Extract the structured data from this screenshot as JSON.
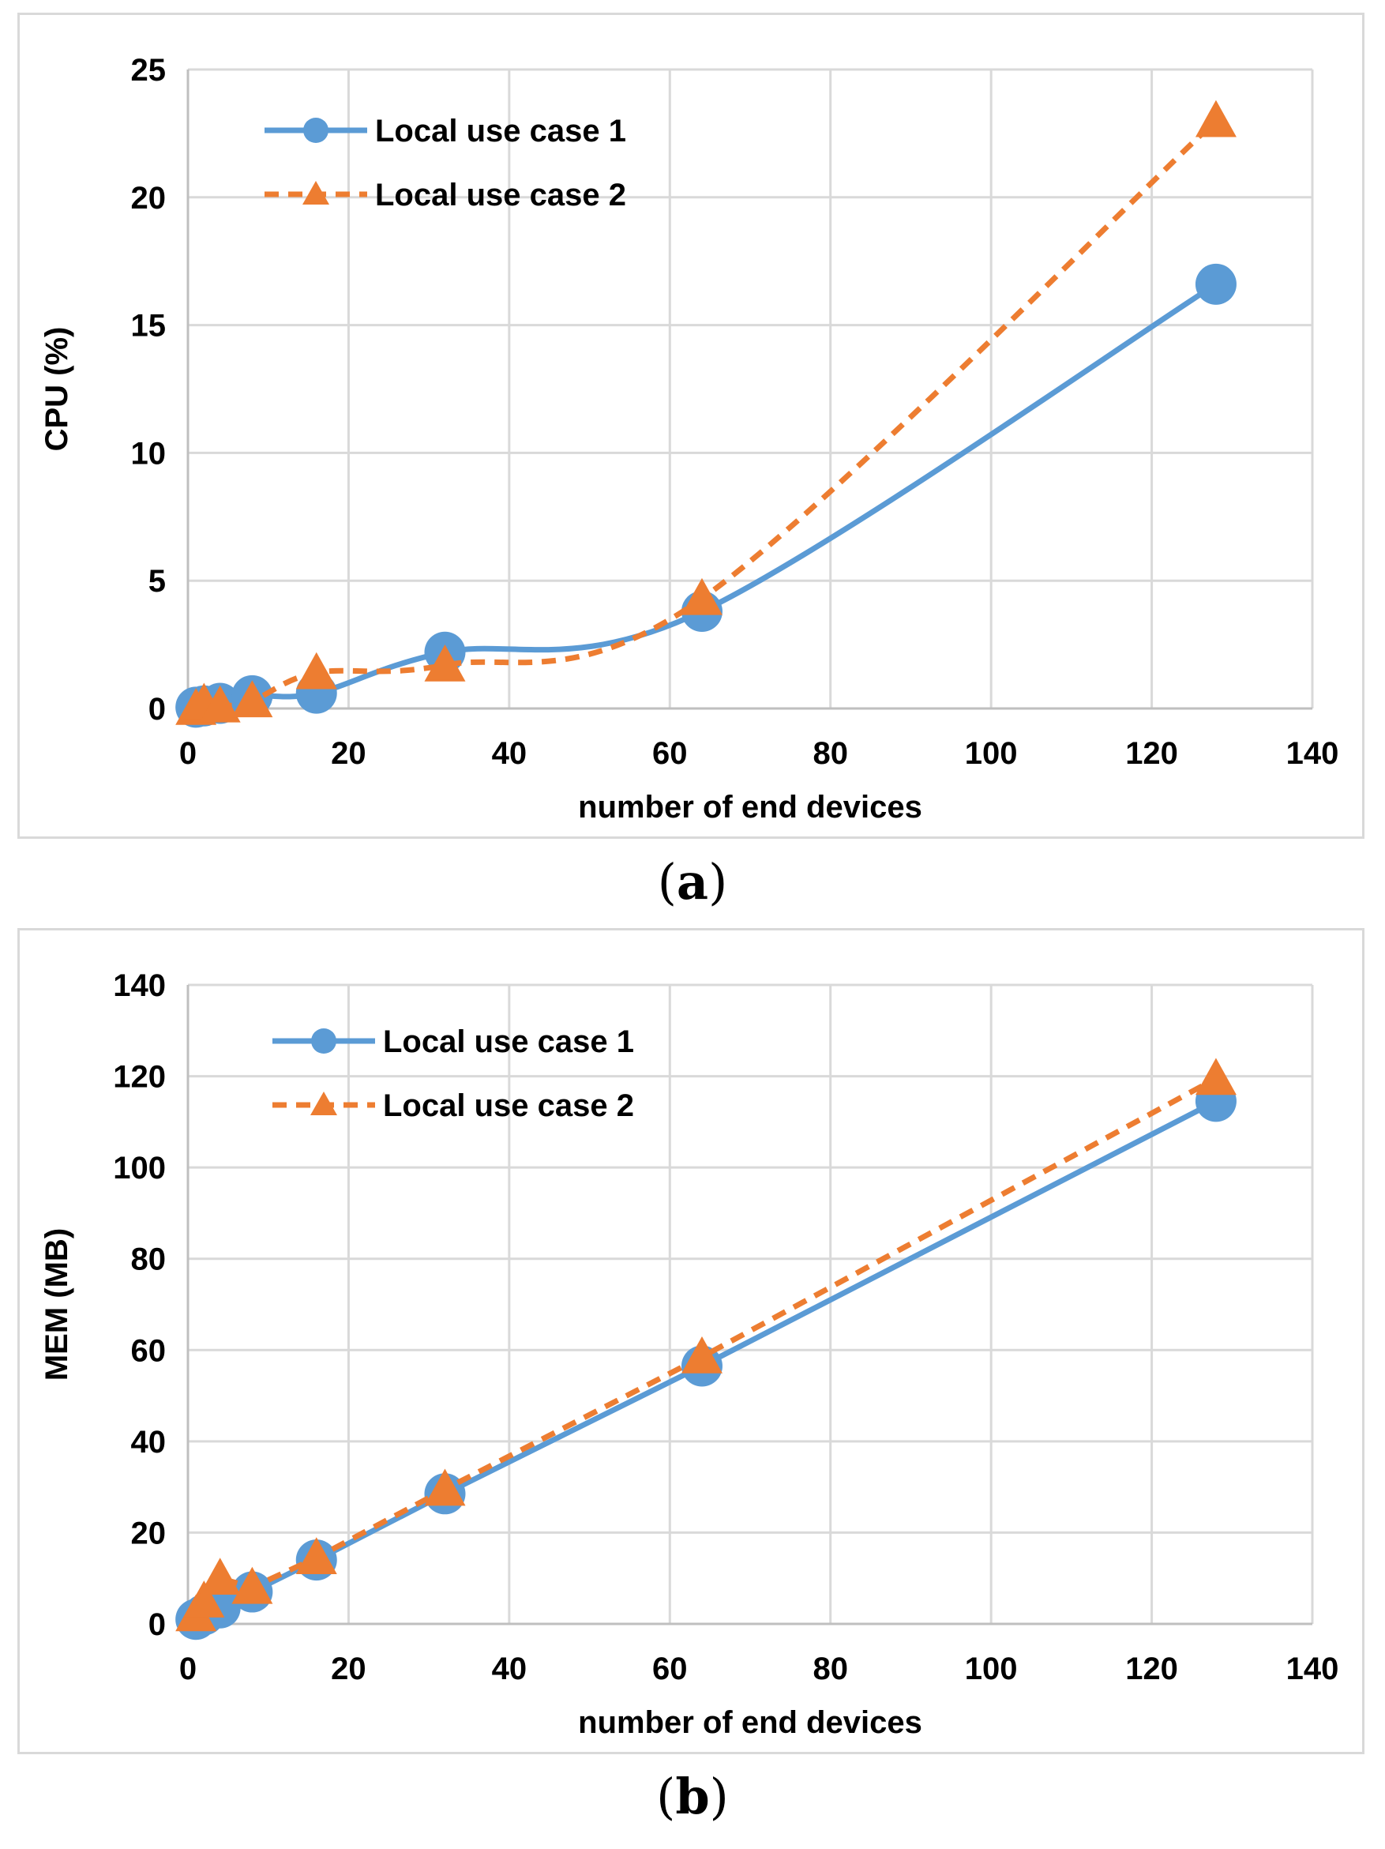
{
  "colors": {
    "series1": "#5b9bd5",
    "series2": "#ed7d31",
    "grid": "#d9d9d9",
    "axis": "#bfbfbf",
    "text": "#000000"
  },
  "captions": {
    "a": "a",
    "b": "b"
  },
  "chart_data": [
    {
      "id": "a",
      "type": "line",
      "title": "",
      "xlabel": "number of end devices",
      "ylabel": "CPU (%)",
      "xlim": [
        0,
        140
      ],
      "ylim": [
        0,
        25
      ],
      "xticks": [
        0,
        20,
        40,
        60,
        80,
        100,
        120,
        140
      ],
      "yticks": [
        0,
        5,
        10,
        15,
        20,
        25
      ],
      "grid": true,
      "legend": "top-left",
      "series": [
        {
          "name": "Local use case 1",
          "style": "solid",
          "marker": "circle",
          "smooth": true,
          "x": [
            1,
            2,
            4,
            8,
            16,
            32,
            64,
            128
          ],
          "y": [
            0.05,
            0.1,
            0.2,
            0.5,
            0.6,
            2.2,
            3.8,
            16.6
          ]
        },
        {
          "name": "Local use case 2",
          "style": "dashed",
          "marker": "triangle",
          "smooth": true,
          "x": [
            1,
            2,
            4,
            8,
            16,
            32,
            64,
            128
          ],
          "y": [
            0.0,
            0.2,
            0.1,
            0.3,
            1.4,
            1.7,
            4.3,
            23.0
          ]
        }
      ]
    },
    {
      "id": "b",
      "type": "line",
      "title": "",
      "xlabel": "number of end devices",
      "ylabel": "MEM (MB)",
      "xlim": [
        0,
        140
      ],
      "ylim": [
        0,
        140
      ],
      "xticks": [
        0,
        20,
        40,
        60,
        80,
        100,
        120,
        140
      ],
      "yticks": [
        0,
        20,
        40,
        60,
        80,
        100,
        120,
        140
      ],
      "grid": true,
      "legend": "top-left",
      "series": [
        {
          "name": "Local use case 1",
          "style": "solid",
          "marker": "circle",
          "smooth": false,
          "x": [
            1,
            2,
            4,
            8,
            16,
            32,
            64,
            128
          ],
          "y": [
            1,
            2,
            3.5,
            7,
            14,
            28.5,
            56.5,
            114.5
          ]
        },
        {
          "name": "Local use case 2",
          "style": "dashed",
          "marker": "triangle",
          "smooth": false,
          "x": [
            1,
            2,
            4,
            8,
            16,
            32,
            64,
            128
          ],
          "y": [
            2,
            5,
            10,
            8,
            14.5,
            29.5,
            58.5,
            119.5
          ]
        }
      ]
    }
  ]
}
